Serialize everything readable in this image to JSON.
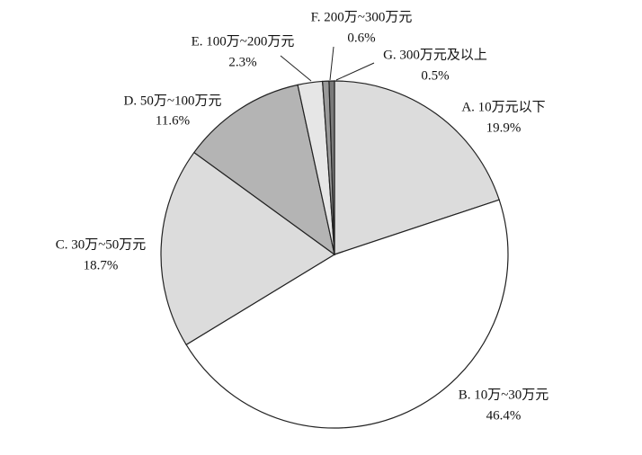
{
  "chart_data": {
    "type": "pie",
    "categories": [
      "A. 10万元以下",
      "B. 10万~30万元",
      "C. 30万~50万元",
      "D. 50万~100万元",
      "E. 100万~200万元",
      "F. 200万~300万元",
      "G. 300万元及以上"
    ],
    "values": [
      19.9,
      46.4,
      18.7,
      11.6,
      2.3,
      0.6,
      0.5
    ],
    "value_labels": [
      "19.9%",
      "46.4%",
      "18.7%",
      "11.6%",
      "2.3%",
      "0.6%",
      "0.5%"
    ],
    "colors": [
      "#dcdcdc",
      "#ffffff",
      "#dcdcdc",
      "#b4b4b4",
      "#e6e6e6",
      "#9a9a9a",
      "#7a7a7a"
    ]
  }
}
